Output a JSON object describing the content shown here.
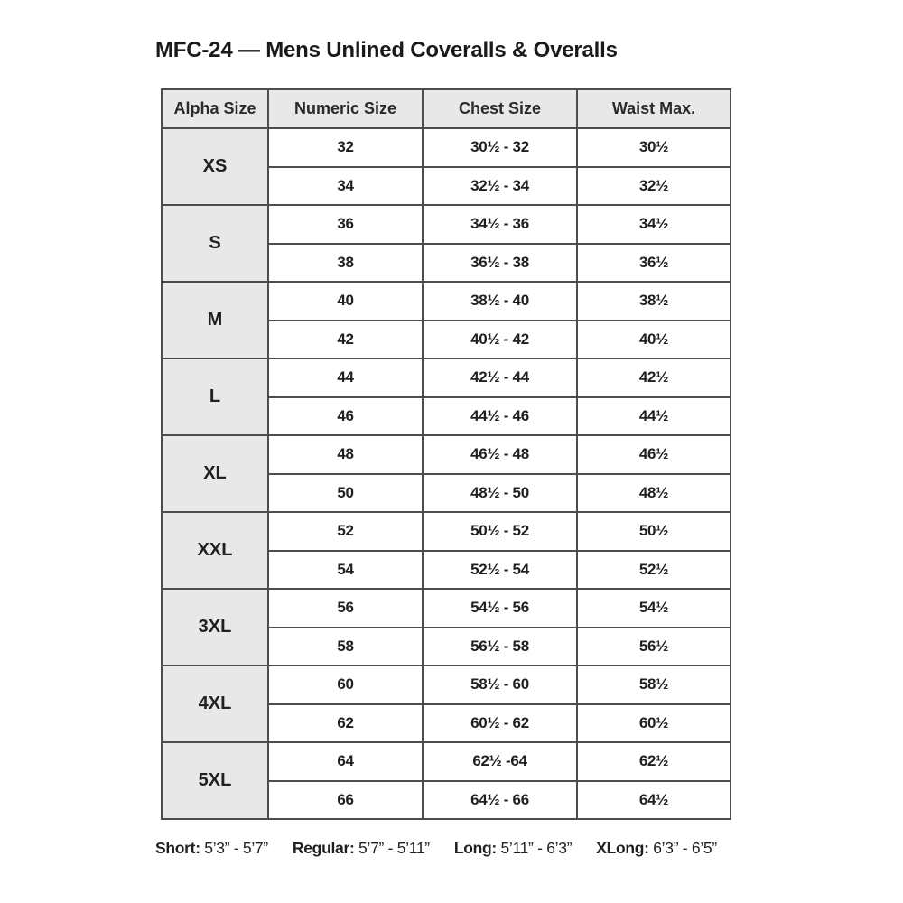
{
  "title": "MFC-24 — Mens Unlined Coveralls & Overalls",
  "colors": {
    "header_bg": "#e8e8e8",
    "alpha_col_bg": "#e8e8e8",
    "border": "#4d4d4d",
    "text": "#231f20",
    "background": "#ffffff"
  },
  "table": {
    "headers": [
      "Alpha Size",
      "Numeric Size",
      "Chest Size",
      "Waist Max."
    ],
    "groups": [
      {
        "alpha": "XS",
        "rows": [
          [
            "32",
            "30½ - 32",
            "30½"
          ],
          [
            "34",
            "32½ - 34",
            "32½"
          ]
        ]
      },
      {
        "alpha": "S",
        "rows": [
          [
            "36",
            "34½ - 36",
            "34½"
          ],
          [
            "38",
            "36½ - 38",
            "36½"
          ]
        ]
      },
      {
        "alpha": "M",
        "rows": [
          [
            "40",
            "38½ - 40",
            "38½"
          ],
          [
            "42",
            "40½ - 42",
            "40½"
          ]
        ]
      },
      {
        "alpha": "L",
        "rows": [
          [
            "44",
            "42½ - 44",
            "42½"
          ],
          [
            "46",
            "44½ - 46",
            "44½"
          ]
        ]
      },
      {
        "alpha": "XL",
        "rows": [
          [
            "48",
            "46½ - 48",
            "46½"
          ],
          [
            "50",
            "48½ - 50",
            "48½"
          ]
        ]
      },
      {
        "alpha": "XXL",
        "rows": [
          [
            "52",
            "50½ - 52",
            "50½"
          ],
          [
            "54",
            "52½ - 54",
            "52½"
          ]
        ]
      },
      {
        "alpha": "3XL",
        "rows": [
          [
            "56",
            "54½ - 56",
            "54½"
          ],
          [
            "58",
            "56½ - 58",
            "56½"
          ]
        ]
      },
      {
        "alpha": "4XL",
        "rows": [
          [
            "60",
            "58½ - 60",
            "58½"
          ],
          [
            "62",
            "60½ - 62",
            "60½"
          ]
        ]
      },
      {
        "alpha": "5XL",
        "rows": [
          [
            "64",
            "62½ -64",
            "62½"
          ],
          [
            "66",
            "64½ - 66",
            "64½"
          ]
        ]
      }
    ]
  },
  "footer": [
    {
      "label": "Short:",
      "value": "5’3” - 5’7”"
    },
    {
      "label": "Regular:",
      "value": "5’7” - 5’11”"
    },
    {
      "label": "Long:",
      "value": "5’11” - 6’3”"
    },
    {
      "label": "XLong:",
      "value": "6’3” - 6’5”"
    }
  ],
  "chart_data": {
    "type": "table",
    "title": "MFC-24 — Mens Unlined Coveralls & Overalls",
    "columns": [
      "Alpha Size",
      "Numeric Size",
      "Chest Size",
      "Waist Max."
    ],
    "rows": [
      [
        "XS",
        "32",
        "30½ - 32",
        "30½"
      ],
      [
        "XS",
        "34",
        "32½ - 34",
        "32½"
      ],
      [
        "S",
        "36",
        "34½ - 36",
        "34½"
      ],
      [
        "S",
        "38",
        "36½ - 38",
        "36½"
      ],
      [
        "M",
        "40",
        "38½ - 40",
        "38½"
      ],
      [
        "M",
        "42",
        "40½ - 42",
        "40½"
      ],
      [
        "L",
        "44",
        "42½ - 44",
        "42½"
      ],
      [
        "L",
        "46",
        "44½ - 46",
        "44½"
      ],
      [
        "XL",
        "48",
        "46½ - 48",
        "46½"
      ],
      [
        "XL",
        "50",
        "48½ - 50",
        "48½"
      ],
      [
        "XXL",
        "52",
        "50½ - 52",
        "50½"
      ],
      [
        "XXL",
        "54",
        "52½ - 54",
        "52½"
      ],
      [
        "3XL",
        "56",
        "54½ - 56",
        "54½"
      ],
      [
        "3XL",
        "58",
        "56½ - 58",
        "56½"
      ],
      [
        "4XL",
        "60",
        "58½ - 60",
        "58½"
      ],
      [
        "4XL",
        "62",
        "60½ - 62",
        "60½"
      ],
      [
        "5XL",
        "64",
        "62½ -64",
        "62½"
      ],
      [
        "5XL",
        "66",
        "64½ - 66",
        "64½"
      ]
    ],
    "legend": [
      "Short: 5’3” - 5’7”",
      "Regular: 5’7” - 5’11”",
      "Long: 5’11” - 6’3”",
      "XLong: 6’3” - 6’5”"
    ]
  }
}
